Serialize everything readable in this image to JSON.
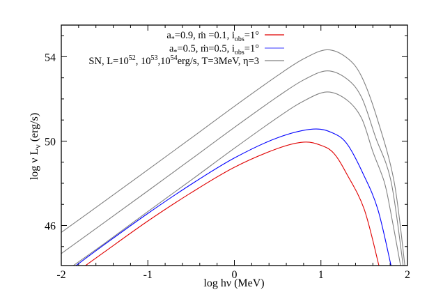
{
  "chart_data": {
    "type": "line",
    "title": "",
    "xlabel": "log  hν (MeV)",
    "ylabel": "log  ν L",
    "ylabel_sub": "ν",
    "ylabel_unit": " (erg/s)",
    "xlim": [
      -2,
      2
    ],
    "ylim": [
      44.1,
      55.5
    ],
    "x_ticks": [
      -2,
      -1,
      0,
      1,
      2
    ],
    "x_tick_labels": [
      "-2",
      "-1",
      "0",
      "1",
      "2"
    ],
    "x_minor_step": 0.2,
    "y_ticks": [
      46,
      50,
      54
    ],
    "y_tick_labels": [
      "46",
      "50",
      "54"
    ],
    "y_minor_step": 1,
    "grid": false,
    "legend_position": "top-center",
    "legend": [
      {
        "segments": [
          [
            "a",
            "n"
          ],
          [
            "*",
            "sub"
          ],
          [
            "=0.9, ",
            "n"
          ],
          [
            "ṁ",
            "n"
          ],
          [
            " =0.1, i",
            "n"
          ],
          [
            "obs",
            "sub"
          ],
          [
            "=1°",
            "n"
          ]
        ],
        "color": "#e00000"
      },
      {
        "segments": [
          [
            "a",
            "n"
          ],
          [
            "*",
            "sub"
          ],
          [
            "=0.5, ",
            "n"
          ],
          [
            "ṁ",
            "n"
          ],
          [
            "=0.5, i",
            "n"
          ],
          [
            "obs",
            "sub"
          ],
          [
            "=1°",
            "n"
          ]
        ],
        "color": "#0000ff"
      },
      {
        "segments": [
          [
            "SN, L=10",
            "n"
          ],
          [
            "52",
            "sup"
          ],
          [
            ", 10",
            "n"
          ],
          [
            "53",
            "sup"
          ],
          [
            ",10",
            "n"
          ],
          [
            "54",
            "sup"
          ],
          [
            "erg/s, T=3MeV, η=3",
            "n"
          ]
        ],
        "color": "#808080"
      }
    ],
    "series": [
      {
        "name": "a*=0.9, mdot=0.1, i_obs=1°",
        "color": "#e00000",
        "points": [
          [
            -1.72,
            44.1
          ],
          [
            -1.5,
            44.75
          ],
          [
            -1,
            46.21
          ],
          [
            -0.5,
            47.55
          ],
          [
            0,
            48.76
          ],
          [
            0.5,
            49.65
          ],
          [
            0.8,
            49.95
          ],
          [
            1.0,
            49.8
          ],
          [
            1.149,
            49.42
          ],
          [
            1.3,
            48.43
          ],
          [
            1.5,
            46.77
          ],
          [
            1.67,
            44.1
          ]
        ]
      },
      {
        "name": "a*=0.5, mdot=0.5, i_obs=1°",
        "color": "#0000ff",
        "points": [
          [
            -1.83,
            44.1
          ],
          [
            -1.5,
            45.1
          ],
          [
            -1,
            46.57
          ],
          [
            -0.5,
            47.95
          ],
          [
            0,
            49.2
          ],
          [
            0.5,
            50.16
          ],
          [
            0.91,
            50.57
          ],
          [
            1.149,
            50.36
          ],
          [
            1.31,
            49.82
          ],
          [
            1.49,
            48.43
          ],
          [
            1.657,
            46.77
          ],
          [
            1.81,
            44.1
          ]
        ]
      },
      {
        "name": "SN, L=10^54 erg/s",
        "color": "#808080",
        "points": [
          [
            -2,
            45.67
          ],
          [
            -1.5,
            47.15
          ],
          [
            -1,
            48.64
          ],
          [
            -0.5,
            50.14
          ],
          [
            0,
            51.65
          ],
          [
            0.5,
            53.11
          ],
          [
            0.8,
            53.9
          ],
          [
            1.07,
            54.33
          ],
          [
            1.3,
            53.95
          ],
          [
            1.47,
            53.06
          ],
          [
            1.65,
            51.07
          ],
          [
            1.845,
            48.09
          ],
          [
            1.97,
            44.1
          ]
        ]
      },
      {
        "name": "SN, L=10^53 erg/s",
        "color": "#808080",
        "points": [
          [
            -2,
            44.67
          ],
          [
            -1.5,
            46.15
          ],
          [
            -1,
            47.64
          ],
          [
            -0.5,
            49.14
          ],
          [
            0,
            50.65
          ],
          [
            0.5,
            52.11
          ],
          [
            0.8,
            52.9
          ],
          [
            1.07,
            53.33
          ],
          [
            1.3,
            52.95
          ],
          [
            1.47,
            52.07
          ],
          [
            1.63,
            50.2
          ],
          [
            1.81,
            48.09
          ],
          [
            1.95,
            44.1
          ]
        ]
      },
      {
        "name": "SN, L=10^52 erg/s",
        "color": "#808080",
        "points": [
          [
            -1.86,
            44.1
          ],
          [
            -1.5,
            45.15
          ],
          [
            -1,
            46.66
          ],
          [
            -0.5,
            48.15
          ],
          [
            0,
            49.66
          ],
          [
            0.5,
            51.12
          ],
          [
            0.8,
            51.9
          ],
          [
            1.07,
            52.33
          ],
          [
            1.3,
            51.95
          ],
          [
            1.47,
            51.08
          ],
          [
            1.6,
            49.5
          ],
          [
            1.73,
            48.09
          ],
          [
            1.8,
            46.77
          ],
          [
            1.92,
            44.1
          ]
        ]
      }
    ]
  }
}
